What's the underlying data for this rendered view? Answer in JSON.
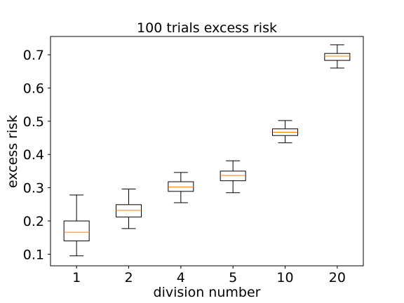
{
  "chart_data": {
    "type": "box",
    "title": "100 trials excess risk",
    "xlabel": "division number",
    "ylabel": "excess risk",
    "categories": [
      "1",
      "2",
      "4",
      "5",
      "10",
      "20"
    ],
    "ylim": [
      0.065,
      0.755
    ],
    "yticks": [
      0.1,
      0.2,
      0.3,
      0.4,
      0.5,
      0.6,
      0.7
    ],
    "ytick_labels": [
      "0.1",
      "0.2",
      "0.3",
      "0.4",
      "0.5",
      "0.6",
      "0.7"
    ],
    "grid": false,
    "boxes": [
      {
        "category": "1",
        "whisker_low": 0.095,
        "q1": 0.14,
        "median": 0.166,
        "q3": 0.2,
        "whisker_high": 0.278
      },
      {
        "category": "2",
        "whisker_low": 0.177,
        "q1": 0.212,
        "median": 0.232,
        "q3": 0.249,
        "whisker_high": 0.296
      },
      {
        "category": "4",
        "whisker_low": 0.255,
        "q1": 0.289,
        "median": 0.302,
        "q3": 0.318,
        "whisker_high": 0.346
      },
      {
        "category": "5",
        "whisker_low": 0.285,
        "q1": 0.321,
        "median": 0.337,
        "q3": 0.35,
        "whisker_high": 0.381
      },
      {
        "category": "10",
        "whisker_low": 0.435,
        "q1": 0.457,
        "median": 0.467,
        "q3": 0.477,
        "whisker_high": 0.502
      },
      {
        "category": "20",
        "whisker_low": 0.66,
        "q1": 0.683,
        "median": 0.696,
        "q3": 0.704,
        "whisker_high": 0.73
      }
    ],
    "colors": {
      "box": "#000000",
      "median": "#ff7f0e"
    }
  }
}
